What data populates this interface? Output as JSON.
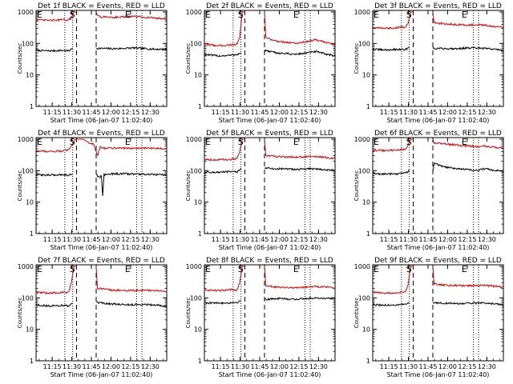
{
  "figure": {
    "common": {
      "ylabel": "Counts/sec",
      "xlabel": "Start Time (06-Jan-07 11:02:40)",
      "x_tick_labels": [
        "11:15",
        "11:30",
        "11:45",
        "12:00",
        "12:15",
        "12:30"
      ],
      "y_tick_labels": [
        "1",
        "10",
        "100",
        "1000"
      ],
      "marker_labels": {
        "E": "E",
        "S": "S"
      }
    },
    "colors": {
      "events": "#000000",
      "lld": "#e00000",
      "axes": "#000000"
    }
  },
  "chart_data": [
    {
      "type": "line",
      "title": "Det 1f BLACK = Events, RED = LLD",
      "yscale": "log",
      "ylim": [
        1,
        1000
      ],
      "x_units": "minutes after 11:02:40",
      "xlim": [
        0,
        100
      ],
      "markers": {
        "E_left": 0,
        "S": 25,
        "E_right": 68
      },
      "dashed_lines_x": [
        31,
        46
      ],
      "dotted_lines_x": [
        22,
        28,
        77,
        81
      ],
      "series": [
        {
          "name": "Events",
          "color": "#000000",
          "segments": [
            {
              "x": [
                0,
                10,
                20,
                25,
                28
              ],
              "y": [
                60,
                58,
                60,
                58,
                70
              ]
            },
            {
              "x": [
                46,
                60,
                75,
                90,
                100
              ],
              "y": [
                70,
                68,
                72,
                66,
                65
              ]
            }
          ]
        },
        {
          "name": "LLD",
          "color": "#e00000",
          "segments": [
            {
              "x": [
                0,
                10,
                20,
                25,
                27,
                29,
                31
              ],
              "y": [
                560,
                540,
                560,
                560,
                650,
                1000,
                1000
              ]
            },
            {
              "x": [
                46,
                47,
                50,
                60,
                75,
                90,
                100
              ],
              "y": [
                1000,
                750,
                700,
                680,
                720,
                650,
                600
              ]
            }
          ]
        }
      ]
    },
    {
      "type": "line",
      "title": "Det 2f BLACK = Events, RED = LLD",
      "yscale": "log",
      "ylim": [
        1,
        1000
      ],
      "x_units": "minutes after 11:02:40",
      "xlim": [
        0,
        100
      ],
      "markers": {
        "E_left": 0,
        "S": 25,
        "E_right": 68
      },
      "dashed_lines_x": [
        31,
        46
      ],
      "dotted_lines_x": [
        22,
        28,
        77,
        81
      ],
      "series": [
        {
          "name": "Events",
          "color": "#000000",
          "segments": [
            {
              "x": [
                0,
                10,
                20,
                25,
                28
              ],
              "y": [
                45,
                40,
                42,
                45,
                50
              ]
            },
            {
              "x": [
                46,
                55,
                70,
                85,
                100
              ],
              "y": [
                60,
                50,
                45,
                55,
                40
              ]
            }
          ]
        },
        {
          "name": "LLD",
          "color": "#e00000",
          "segments": [
            {
              "x": [
                0,
                10,
                20,
                25,
                27,
                29,
                31
              ],
              "y": [
                95,
                85,
                90,
                95,
                150,
                1000,
                1000
              ]
            },
            {
              "x": [
                46,
                47,
                55,
                70,
                85,
                100
              ],
              "y": [
                1000,
                150,
                120,
                100,
                130,
                90
              ]
            }
          ]
        }
      ]
    },
    {
      "type": "line",
      "title": "Det 3f BLACK = Events, RED = LLD",
      "yscale": "log",
      "ylim": [
        1,
        1000
      ],
      "x_units": "minutes after 11:02:40",
      "xlim": [
        0,
        100
      ],
      "markers": {
        "E_left": 0,
        "S": 25,
        "E_right": 68
      },
      "dashed_lines_x": [
        31,
        46
      ],
      "dotted_lines_x": [
        22,
        28,
        77,
        81
      ],
      "series": [
        {
          "name": "Events",
          "color": "#000000",
          "segments": [
            {
              "x": [
                0,
                10,
                20,
                25,
                28
              ],
              "y": [
                65,
                62,
                65,
                62,
                80
              ]
            },
            {
              "x": [
                46,
                60,
                75,
                90,
                100
              ],
              "y": [
                70,
                68,
                72,
                68,
                60
              ]
            }
          ]
        },
        {
          "name": "LLD",
          "color": "#e00000",
          "segments": [
            {
              "x": [
                0,
                10,
                20,
                25,
                27,
                29,
                31
              ],
              "y": [
                320,
                300,
                320,
                340,
                420,
                1000,
                1000
              ]
            },
            {
              "x": [
                46,
                47,
                55,
                70,
                85,
                100
              ],
              "y": [
                1000,
                450,
                420,
                390,
                380,
                320
              ]
            }
          ]
        }
      ]
    },
    {
      "type": "line",
      "title": "Det 4f BLACK = Events, RED = LLD",
      "yscale": "log",
      "ylim": [
        1,
        1000
      ],
      "x_units": "minutes after 11:02:40",
      "xlim": [
        0,
        100
      ],
      "markers": {
        "E_left": 0,
        "S": 25,
        "E_right": 68
      },
      "dashed_lines_x": [
        31,
        46
      ],
      "dotted_lines_x": [
        22,
        28,
        77,
        81
      ],
      "series": [
        {
          "name": "Events",
          "color": "#000000",
          "segments": [
            {
              "x": [
                0,
                10,
                20,
                25,
                28
              ],
              "y": [
                75,
                72,
                75,
                72,
                80
              ]
            },
            {
              "x": [
                46,
                48,
                50,
                51,
                52,
                60,
                75,
                90,
                100
              ],
              "y": [
                80,
                60,
                70,
                15,
                75,
                80,
                78,
                75,
                72
              ]
            }
          ]
        },
        {
          "name": "LLD",
          "color": "#e00000",
          "segments": [
            {
              "x": [
                0,
                10,
                20,
                25,
                28,
                30,
                32,
                36,
                40,
                44,
                47,
                49,
                52,
                60,
                75,
                90,
                100
              ],
              "y": [
                420,
                410,
                420,
                450,
                700,
                1000,
                1000,
                1000,
                800,
                700,
                300,
                550,
                520,
                530,
                510,
                520,
                500
              ]
            }
          ]
        }
      ]
    },
    {
      "type": "line",
      "title": "Det 5f BLACK = Events, RED = LLD",
      "yscale": "log",
      "ylim": [
        1,
        1000
      ],
      "x_units": "minutes after 11:02:40",
      "xlim": [
        0,
        100
      ],
      "markers": {
        "E_left": 0,
        "S": 25,
        "E_right": 68
      },
      "dashed_lines_x": [
        31,
        46
      ],
      "dotted_lines_x": [
        22,
        28,
        77,
        81
      ],
      "series": [
        {
          "name": "Events",
          "color": "#000000",
          "segments": [
            {
              "x": [
                0,
                10,
                20,
                25,
                28
              ],
              "y": [
                90,
                88,
                92,
                90,
                120
              ]
            },
            {
              "x": [
                46,
                55,
                70,
                85,
                100
              ],
              "y": [
                120,
                115,
                110,
                115,
                100
              ]
            }
          ]
        },
        {
          "name": "LLD",
          "color": "#e00000",
          "segments": [
            {
              "x": [
                0,
                10,
                20,
                25,
                27,
                29,
                31
              ],
              "y": [
                230,
                220,
                230,
                240,
                400,
                1000,
                1000
              ]
            },
            {
              "x": [
                46,
                47,
                55,
                70,
                85,
                100
              ],
              "y": [
                1000,
                300,
                280,
                270,
                280,
                240
              ]
            }
          ]
        }
      ]
    },
    {
      "type": "line",
      "title": "Det 6f BLACK = Events, RED = LLD",
      "yscale": "log",
      "ylim": [
        1,
        1000
      ],
      "x_units": "minutes after 11:02:40",
      "xlim": [
        0,
        100
      ],
      "markers": {
        "E_left": 0,
        "S": 25,
        "E_right": 68
      },
      "dashed_lines_x": [
        31,
        46
      ],
      "dotted_lines_x": [
        22,
        28,
        77,
        81
      ],
      "series": [
        {
          "name": "Events",
          "color": "#000000",
          "segments": [
            {
              "x": [
                0,
                10,
                20,
                25,
                28
              ],
              "y": [
                80,
                78,
                80,
                85,
                100
              ]
            },
            {
              "x": [
                46,
                47,
                55,
                70,
                80,
                85,
                100
              ],
              "y": [
                100,
                170,
                130,
                110,
                100,
                115,
                95
              ]
            }
          ]
        },
        {
          "name": "LLD",
          "color": "#e00000",
          "segments": [
            {
              "x": [
                0,
                10,
                20,
                25,
                27,
                29,
                31
              ],
              "y": [
                450,
                430,
                460,
                480,
                650,
                1000,
                1000
              ]
            },
            {
              "x": [
                46,
                47,
                55,
                70,
                80,
                85,
                100
              ],
              "y": [
                1000,
                750,
                700,
                620,
                580,
                600,
                520
              ]
            }
          ]
        }
      ]
    },
    {
      "type": "line",
      "title": "Det 7f BLACK = Events, RED = LLD",
      "yscale": "log",
      "ylim": [
        1,
        1000
      ],
      "x_units": "minutes after 11:02:40",
      "xlim": [
        0,
        100
      ],
      "markers": {
        "E_left": 0,
        "S": 25,
        "E_right": 68
      },
      "dashed_lines_x": [
        31,
        46
      ],
      "dotted_lines_x": [
        22,
        28,
        77,
        81
      ],
      "series": [
        {
          "name": "Events",
          "color": "#000000",
          "segments": [
            {
              "x": [
                0,
                10,
                20,
                25,
                28
              ],
              "y": [
                60,
                55,
                58,
                55,
                65
              ]
            },
            {
              "x": [
                46,
                55,
                70,
                85,
                100
              ],
              "y": [
                70,
                65,
                60,
                62,
                55
              ]
            }
          ]
        },
        {
          "name": "LLD",
          "color": "#e00000",
          "segments": [
            {
              "x": [
                0,
                10,
                20,
                25,
                27,
                29,
                31
              ],
              "y": [
                150,
                140,
                150,
                150,
                300,
                1000,
                1000
              ]
            },
            {
              "x": [
                46,
                47,
                55,
                70,
                85,
                100
              ],
              "y": [
                1000,
                200,
                180,
                170,
                175,
                160
              ]
            }
          ]
        }
      ]
    },
    {
      "type": "line",
      "title": "Det 8f BLACK = Events, RED = LLD",
      "yscale": "log",
      "ylim": [
        1,
        1000
      ],
      "x_units": "minutes after 11:02:40",
      "xlim": [
        0,
        100
      ],
      "markers": {
        "E_left": 0,
        "S": 25,
        "E_right": 68
      },
      "dashed_lines_x": [
        31,
        46
      ],
      "dotted_lines_x": [
        22,
        28,
        77,
        81
      ],
      "series": [
        {
          "name": "Events",
          "color": "#000000",
          "segments": [
            {
              "x": [
                0,
                10,
                20,
                25,
                28
              ],
              "y": [
                70,
                68,
                70,
                72,
                80
              ]
            },
            {
              "x": [
                46,
                55,
                70,
                85,
                100
              ],
              "y": [
                90,
                95,
                90,
                100,
                95
              ]
            }
          ]
        },
        {
          "name": "LLD",
          "color": "#e00000",
          "segments": [
            {
              "x": [
                0,
                10,
                20,
                25,
                27,
                29,
                31
              ],
              "y": [
                180,
                170,
                180,
                180,
                300,
                1000,
                1000
              ]
            },
            {
              "x": [
                46,
                47,
                55,
                70,
                85,
                100
              ],
              "y": [
                1000,
                250,
                220,
                210,
                230,
                215
              ]
            }
          ]
        }
      ]
    },
    {
      "type": "line",
      "title": "Det 9f BLACK = Events, RED = LLD",
      "yscale": "log",
      "ylim": [
        1,
        1000
      ],
      "x_units": "minutes after 11:02:40",
      "xlim": [
        0,
        100
      ],
      "markers": {
        "E_left": 0,
        "S": 25,
        "E_right": 68
      },
      "dashed_lines_x": [
        31,
        46
      ],
      "dotted_lines_x": [
        22,
        28,
        77,
        81
      ],
      "series": [
        {
          "name": "Events",
          "color": "#000000",
          "segments": [
            {
              "x": [
                0,
                10,
                20,
                25,
                28
              ],
              "y": [
                60,
                58,
                60,
                62,
                70
              ]
            },
            {
              "x": [
                46,
                55,
                70,
                85,
                100
              ],
              "y": [
                70,
                68,
                65,
                70,
                60
              ]
            }
          ]
        },
        {
          "name": "LLD",
          "color": "#e00000",
          "segments": [
            {
              "x": [
                0,
                10,
                20,
                25,
                27,
                29,
                31
              ],
              "y": [
                150,
                140,
                150,
                160,
                250,
                1000,
                1000
              ]
            },
            {
              "x": [
                46,
                47,
                55,
                70,
                85,
                100
              ],
              "y": [
                1000,
                280,
                250,
                240,
                250,
                220
              ]
            }
          ]
        }
      ]
    }
  ]
}
